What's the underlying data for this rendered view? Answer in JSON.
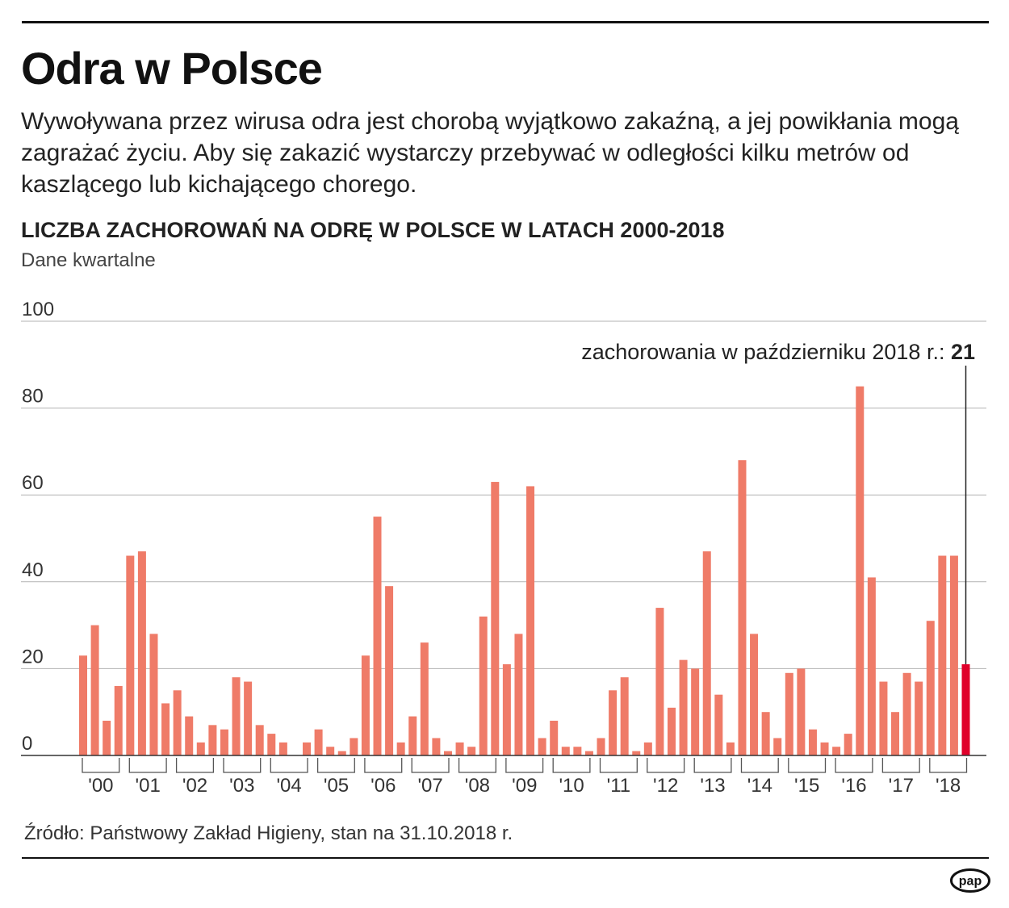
{
  "header": {
    "title": "Odra w Polsce",
    "description": "Wywoływana przez wirusa odra jest chorobą wyjątkowo zakaźną, a jej powikłania mogą zagrażać życiu. Aby się zakazić wystarczy przebywać w odległości kilku metrów od kaszlącego lub kichającego chorego."
  },
  "chart_data": {
    "type": "bar",
    "title": "LICZBA ZACHOROWAŃ NA ODRĘ W POLSCE W LATACH 2000-2018",
    "subtitle": "Dane kwartalne",
    "xlabel": "",
    "ylabel": "",
    "ylim": [
      0,
      100
    ],
    "yticks": [
      0,
      20,
      40,
      60,
      80,
      100
    ],
    "grid": true,
    "year_labels": [
      "'00",
      "'01",
      "'02",
      "'03",
      "'04",
      "'05",
      "'06",
      "'07",
      "'08",
      "'09",
      "'10",
      "'11",
      "'12",
      "'13",
      "'14",
      "'15",
      "'16",
      "'17",
      "'18"
    ],
    "values": [
      23,
      30,
      8,
      16,
      46,
      47,
      28,
      12,
      15,
      9,
      3,
      7,
      6,
      18,
      17,
      7,
      5,
      3,
      0,
      3,
      6,
      2,
      1,
      4,
      23,
      55,
      39,
      3,
      9,
      26,
      4,
      1,
      3,
      2,
      32,
      63,
      21,
      28,
      62,
      4,
      8,
      2,
      2,
      1,
      4,
      15,
      18,
      1,
      3,
      34,
      11,
      22,
      20,
      47,
      14,
      3,
      68,
      28,
      10,
      4,
      19,
      20,
      6,
      3,
      2,
      5,
      85,
      41,
      17,
      10,
      19,
      17,
      31,
      46,
      46,
      21
    ],
    "highlight_index": 75,
    "highlight_color": "#e0002a",
    "bar_color": "#ef7b68",
    "annotation": {
      "label": "zachorowania w październiku 2018 r.:",
      "value": "21"
    }
  },
  "footer": {
    "source": "Źródło: Państwowy Zakład Higieny, stan na 31.10.2018 r.",
    "logo_text": "pap"
  }
}
